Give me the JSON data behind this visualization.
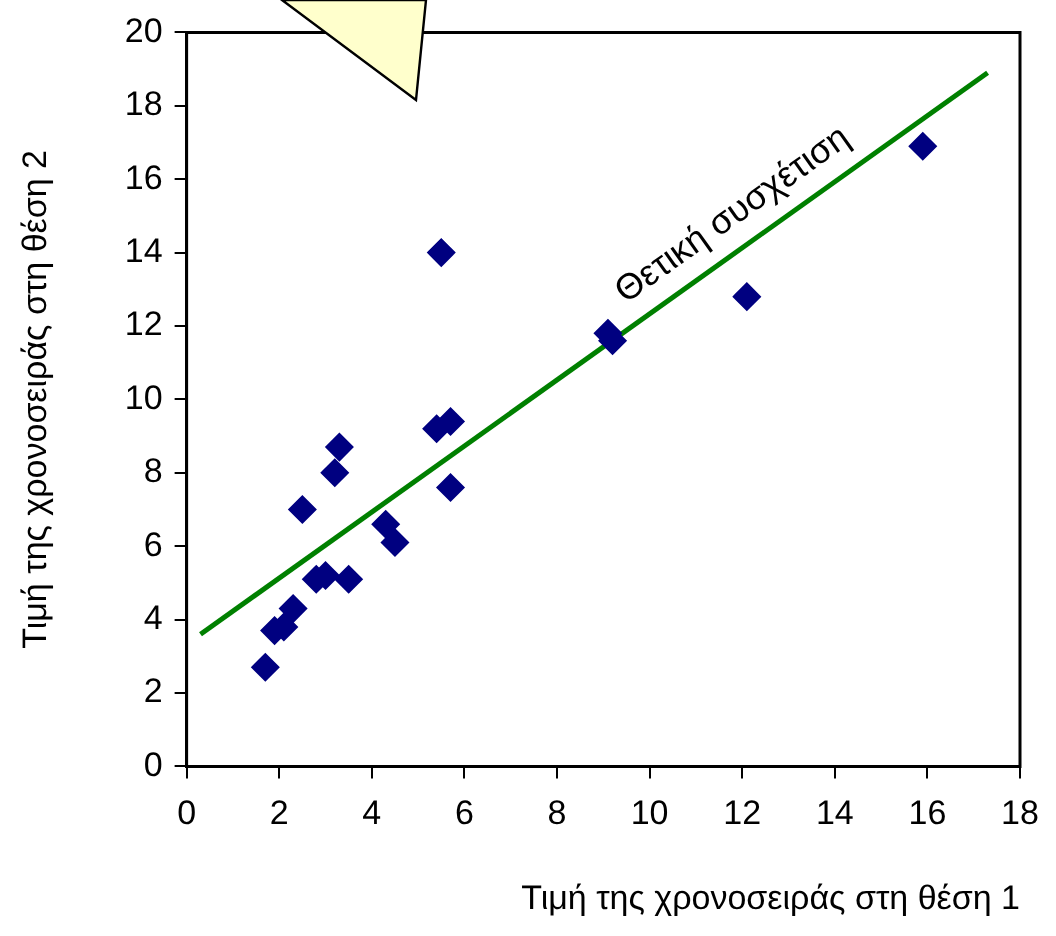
{
  "chart_data": {
    "type": "scatter",
    "xlabel": "Τιμή της χρονοσειράς στη θέση 1",
    "ylabel": "Τιμή της χρονοσειράς στη θέση 2",
    "xlim": [
      0,
      18
    ],
    "xticks": [
      0,
      2,
      4,
      6,
      8,
      10,
      12,
      14,
      16,
      18
    ],
    "ylim": [
      0,
      20
    ],
    "yticks": [
      0,
      2,
      4,
      6,
      8,
      10,
      12,
      14,
      16,
      18,
      20
    ],
    "grid": false,
    "legend": false,
    "marker": "diamond",
    "series": [
      {
        "type": "scatter",
        "color": "#000080",
        "x": [
          1.7,
          1.9,
          2.1,
          2.3,
          2.5,
          2.8,
          3.0,
          3.2,
          3.3,
          3.5,
          4.3,
          4.5,
          5.4,
          5.5,
          5.7,
          5.7,
          9.1,
          9.2,
          12.1,
          15.9
        ],
        "values": [
          2.7,
          3.7,
          3.8,
          4.3,
          7.0,
          5.1,
          5.2,
          8.0,
          8.7,
          5.1,
          6.6,
          6.1,
          9.2,
          14.0,
          9.4,
          7.6,
          11.8,
          11.6,
          12.8,
          16.9
        ]
      },
      {
        "type": "line",
        "color": "#008000",
        "marker": "none",
        "x": [
          0.3,
          17.3
        ],
        "values": [
          3.6,
          18.9
        ]
      }
    ],
    "annotations": [
      "Θετική συσχέτιση"
    ]
  }
}
